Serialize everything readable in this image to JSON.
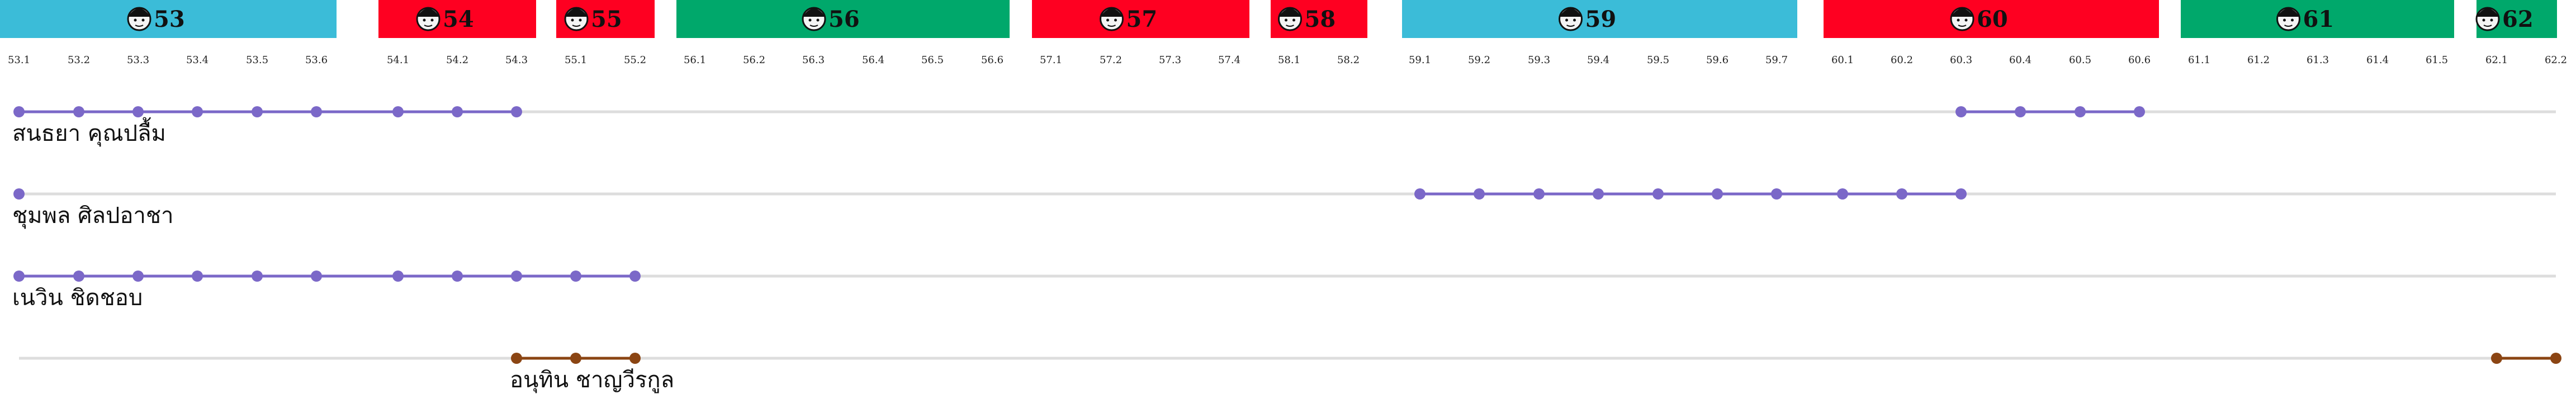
{
  "chart_data": {
    "type": "timeline",
    "title": "",
    "sections": [
      {
        "label": "53",
        "color": "#3bbcd8"
      },
      {
        "label": "54",
        "color": "#fe0021"
      },
      {
        "label": "55",
        "color": "#fe0021"
      },
      {
        "label": "56",
        "color": "#00a86b"
      },
      {
        "label": "57",
        "color": "#fe0021"
      },
      {
        "label": "58",
        "color": "#fe0021"
      },
      {
        "label": "59",
        "color": "#3bbcd8"
      },
      {
        "label": "60",
        "color": "#fe0021"
      },
      {
        "label": "61",
        "color": "#00a86b"
      },
      {
        "label": "62",
        "color": "#00a86b"
      }
    ],
    "ticks": [
      "53.1",
      "53.2",
      "53.3",
      "53.4",
      "53.5",
      "53.6",
      "54.1",
      "54.2",
      "54.3",
      "55.1",
      "55.2",
      "56.1",
      "56.2",
      "56.3",
      "56.4",
      "56.5",
      "56.6",
      "57.1",
      "57.2",
      "57.3",
      "57.4",
      "58.1",
      "58.2",
      "59.1",
      "59.2",
      "59.3",
      "59.4",
      "59.5",
      "59.6",
      "59.7",
      "60.1",
      "60.2",
      "60.3",
      "60.4",
      "60.5",
      "60.6",
      "61.1",
      "61.2",
      "61.3",
      "61.4",
      "61.5",
      "62.1",
      "62.2"
    ],
    "persons": [
      {
        "name": "สนธยา คุณปลื้ม",
        "color": "#7b68c8",
        "segments": [
          [
            "53.1",
            "54.3"
          ],
          [
            "60.3",
            "60.6"
          ]
        ]
      },
      {
        "name": "ชุมพล ศิลปอาชา",
        "color": "#7b68c8",
        "segments": [
          [
            "53.1",
            "53.1"
          ],
          [
            "59.1",
            "60.3"
          ]
        ]
      },
      {
        "name": "เนวิน ชิดชอบ",
        "color": "#7b68c8",
        "segments": [
          [
            "53.1",
            "55.2"
          ]
        ]
      },
      {
        "name": "อนุทิน ชาญวีรกูล",
        "color": "#8b4513",
        "segments": [
          [
            "54.3",
            "55.2"
          ],
          [
            "62.1",
            "62.2"
          ]
        ]
      }
    ],
    "track_color": "#dddddd"
  }
}
